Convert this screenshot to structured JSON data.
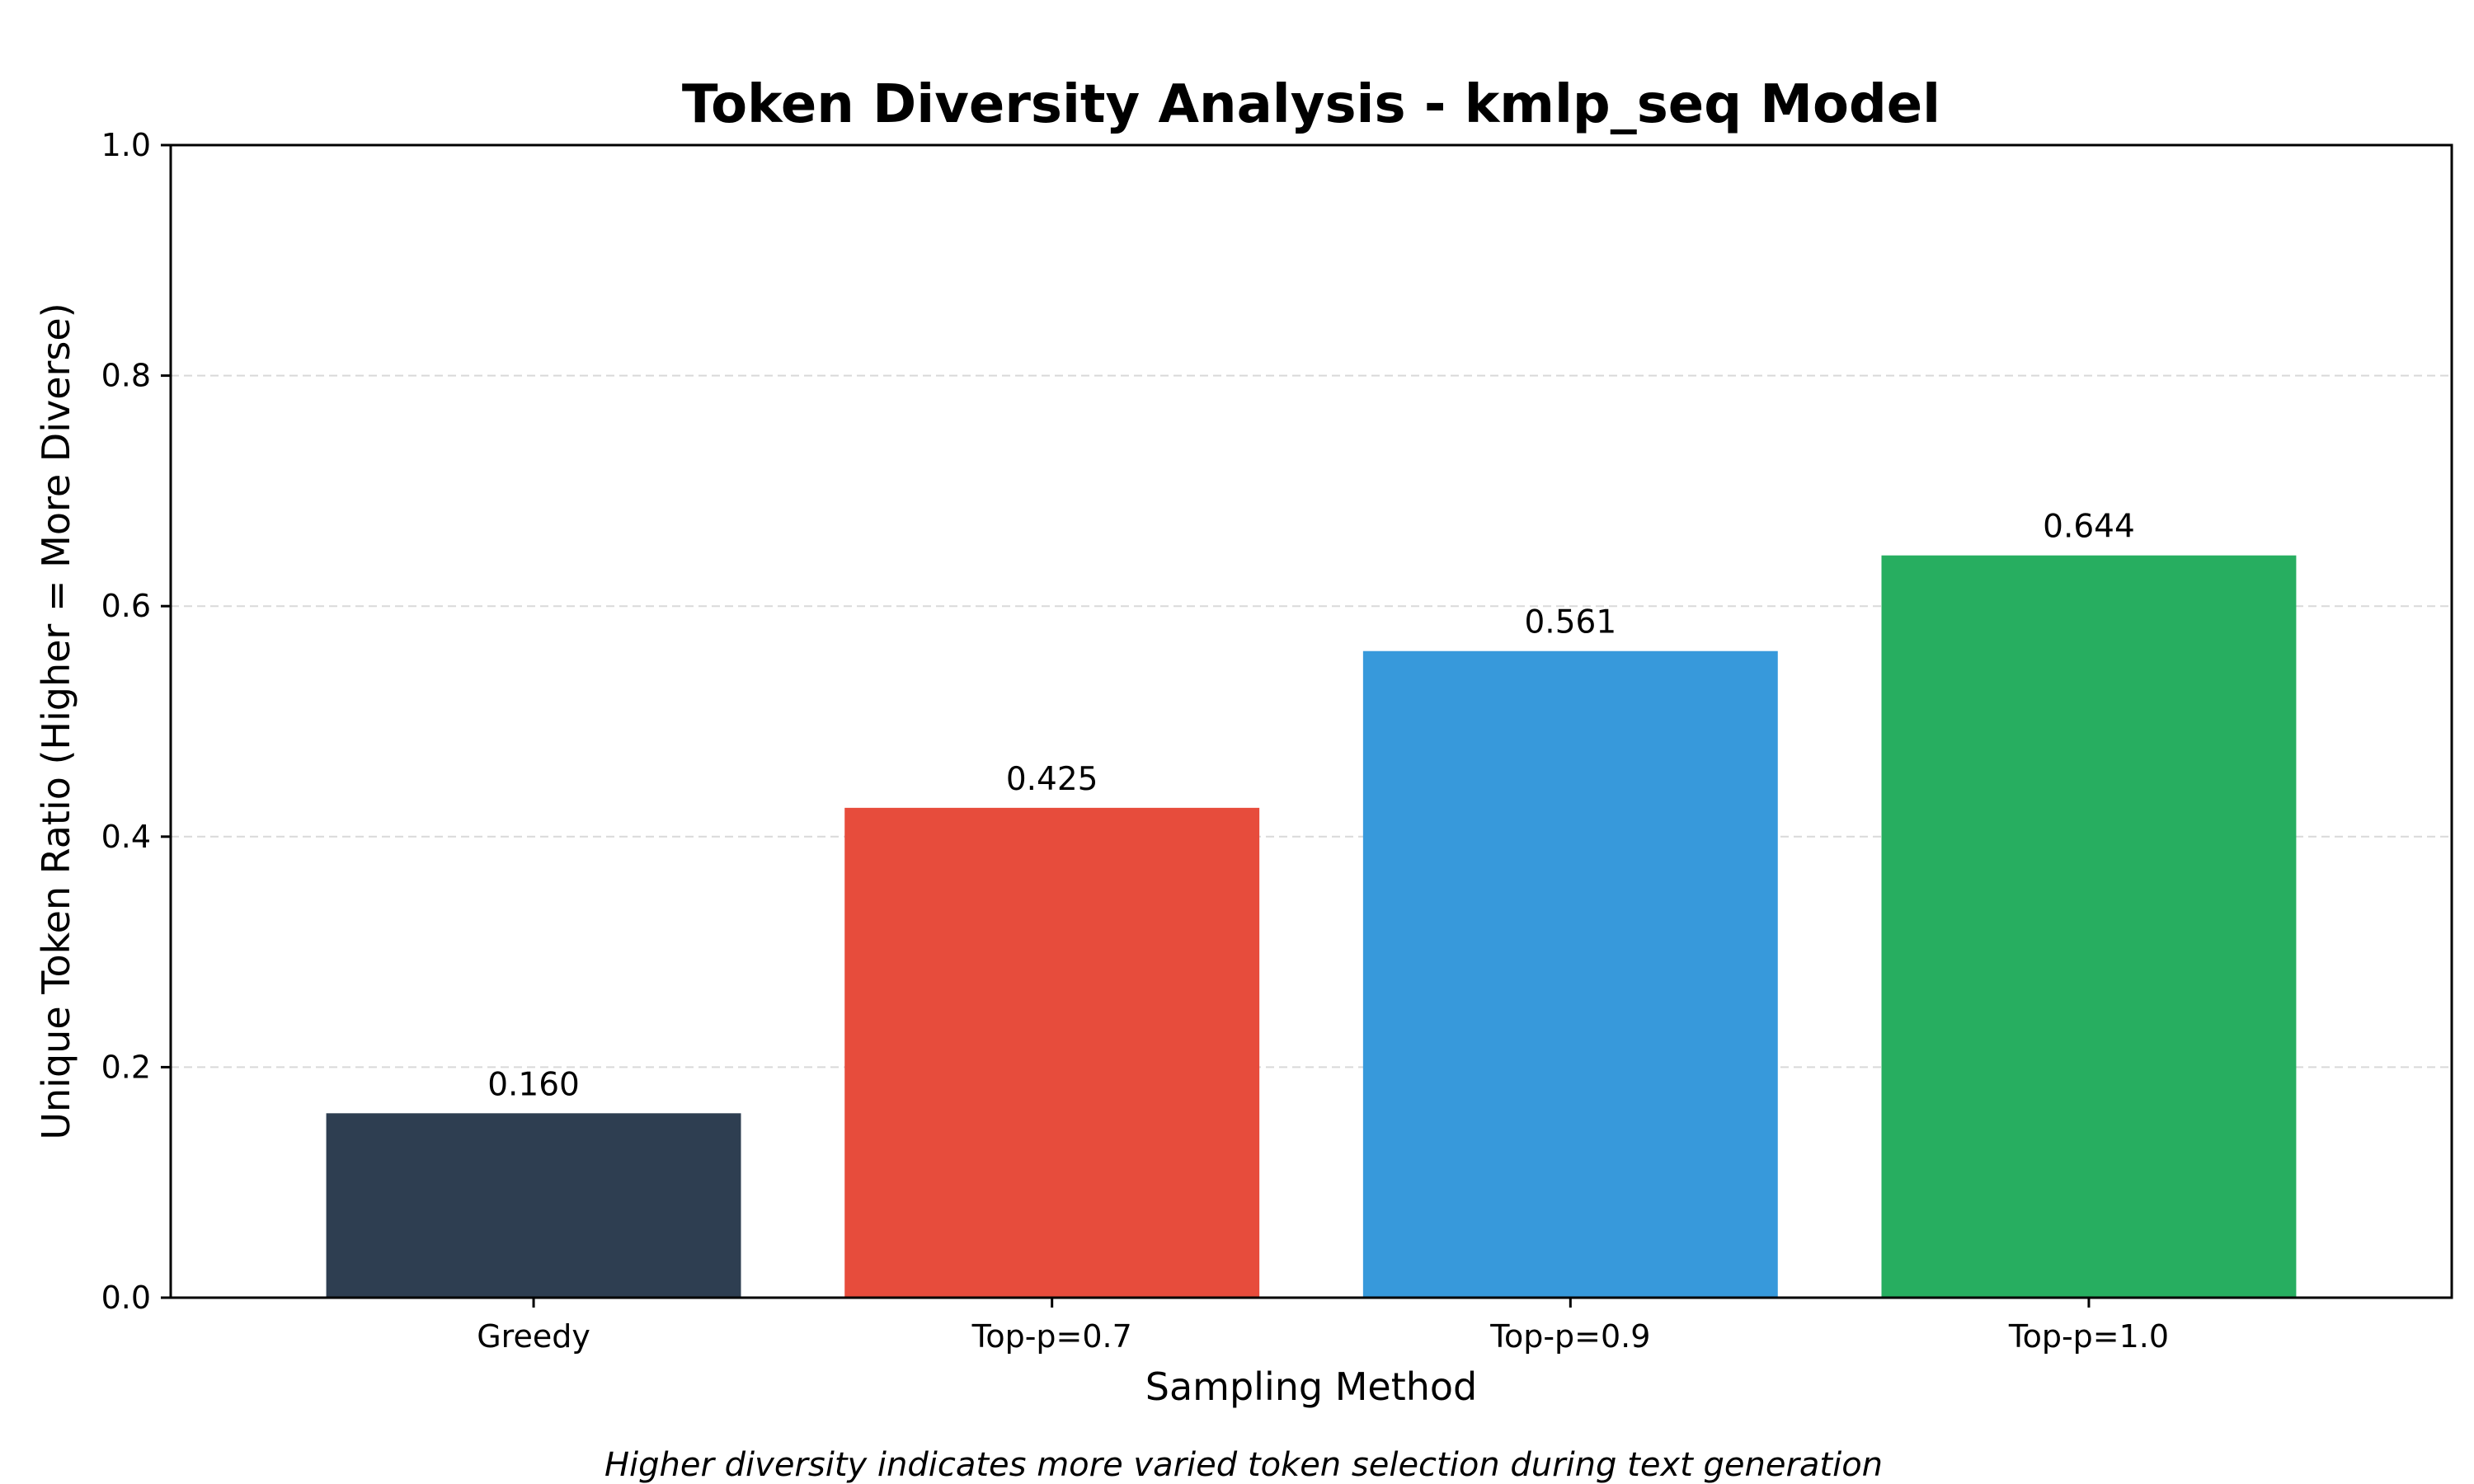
{
  "chart_data": {
    "type": "bar",
    "title": "Token Diversity Analysis - kmlp_seq Model",
    "xlabel": "Sampling Method",
    "ylabel": "Unique Token Ratio (Higher = More Diverse)",
    "categories": [
      "Greedy",
      "Top-p=0.7",
      "Top-p=0.9",
      "Top-p=1.0"
    ],
    "values": [
      0.16,
      0.425,
      0.561,
      0.644
    ],
    "data_labels": [
      "0.160",
      "0.425",
      "0.561",
      "0.644"
    ],
    "colors": [
      "#2e3e51",
      "#e74c3c",
      "#3799db",
      "#27ae60"
    ],
    "ylim": [
      0,
      1.0
    ],
    "yticks": [
      0.0,
      0.2,
      0.4,
      0.6,
      0.8,
      1.0
    ],
    "ytick_labels": [
      "0.0",
      "0.2",
      "0.4",
      "0.6",
      "0.8",
      "1.0"
    ],
    "grid": "y-dashed",
    "legend": "none",
    "caption": "Higher diversity indicates more varied token selection during text generation"
  }
}
